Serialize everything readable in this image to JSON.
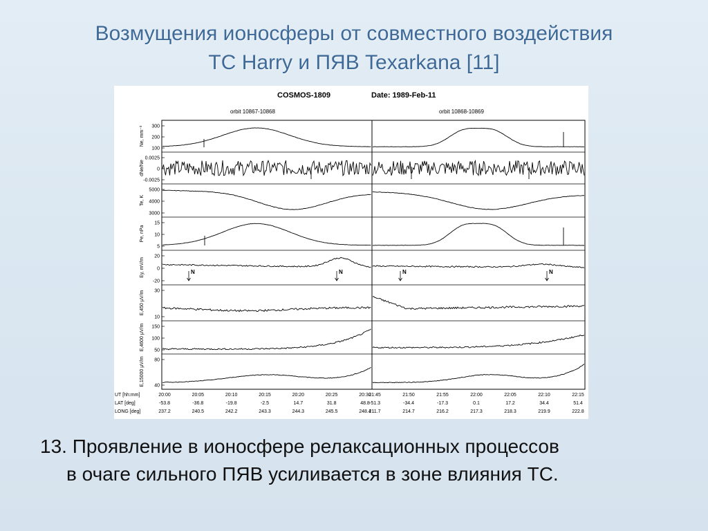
{
  "slide": {
    "title_line1": "Возмущения ионосферы от совместного воздействия",
    "title_line2": "ТС Harry и ПЯВ Texarkana [11]",
    "caption_line1": "13. Проявление в ионосфере релаксационных процессов",
    "caption_line2": "в очаге сильного ПЯВ усиливается в зоне влияния ТС."
  },
  "figure": {
    "satellite": "COSMOS-1809",
    "date": "Date: 1989-Feb-11",
    "orbit_left": "orbit  10867-10868",
    "orbit_right": "orbit  10868-10869",
    "panels": [
      {
        "label": "Ne, mm⁻³",
        "ticks": [
          "300",
          "200",
          "100"
        ]
      },
      {
        "label": "dNe/Ne",
        "ticks": [
          "0.0025",
          "0",
          "-0.0025"
        ]
      },
      {
        "label": "Te, K",
        "ticks": [
          "5000",
          "4000",
          "3000"
        ]
      },
      {
        "label": "Pe, nPa",
        "ticks": [
          "15",
          "10",
          "5"
        ]
      },
      {
        "label": "Ey, mV/m",
        "ticks": [
          "20",
          "0",
          "-20"
        ]
      },
      {
        "label": "E,450 μV/m",
        "ticks": [
          "30",
          "10"
        ]
      },
      {
        "label": "E,4600 μV/m",
        "ticks": [
          "150",
          "100",
          "50"
        ]
      },
      {
        "label": "E,15000 μV/m",
        "ticks": [
          "80",
          "40"
        ]
      }
    ],
    "markers": [
      "N",
      "N",
      "N",
      "N"
    ],
    "table": {
      "row_labels": [
        "UT [hh:mm]",
        "LAT [deg]",
        "LONG [deg]"
      ],
      "left": {
        "ut": [
          "20:00",
          "20:05",
          "20:10",
          "20:15",
          "20:20",
          "20:25",
          "20:30"
        ],
        "lat": [
          "-53.8",
          "-36.8",
          "-19.8",
          "-2.5",
          "14.7",
          "31.8",
          "48.8"
        ],
        "long": [
          "237.2",
          "240.5",
          "242.2",
          "243.3",
          "244.3",
          "245.5",
          "248.4"
        ]
      },
      "right": {
        "ut": [
          "21:45",
          "21:50",
          "21:55",
          "22:00",
          "22:05",
          "22:10",
          "22:15"
        ],
        "lat": [
          "-51.3",
          "-34.4",
          "-17.3",
          "0.1",
          "17.2",
          "34.4",
          "51.4"
        ],
        "long": [
          "211.7",
          "214.7",
          "216.2",
          "217.3",
          "218.3",
          "219.9",
          "222.8"
        ]
      }
    }
  }
}
